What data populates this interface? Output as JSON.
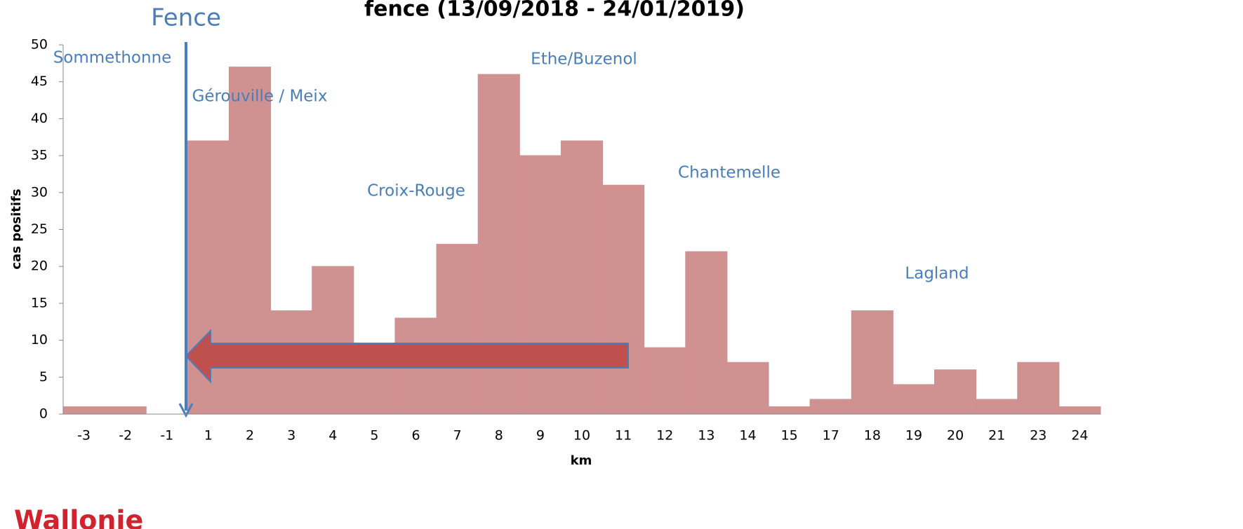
{
  "chart_data": {
    "type": "bar",
    "title": "fence (13/09/2018 - 24/01/2019)",
    "x_label": "km",
    "y_label": "cas positifs",
    "categories": [
      "-3",
      "-2",
      "-1",
      "1",
      "2",
      "3",
      "4",
      "5",
      "6",
      "7",
      "8",
      "9",
      "10",
      "11",
      "12",
      "13",
      "14",
      "15",
      "17",
      "18",
      "19",
      "20",
      "21",
      "23",
      "24"
    ],
    "values": [
      1,
      1,
      0,
      37,
      47,
      14,
      20,
      9,
      13,
      23,
      46,
      35,
      37,
      31,
      9,
      22,
      7,
      1,
      2,
      14,
      4,
      6,
      2,
      7,
      1
    ],
    "color": "#d09191",
    "ylim": [
      0,
      50
    ],
    "yticks": [
      0,
      5,
      10,
      15,
      20,
      25,
      30,
      35,
      40,
      45,
      50
    ],
    "grid": false,
    "annotations": [
      "Fence",
      "Sommethonne",
      "Gérouville / Meix",
      "Ethe/Buzenol",
      "Croix-Rouge",
      "Chantemelle",
      "Lagland"
    ],
    "logo": "Wallonie"
  }
}
